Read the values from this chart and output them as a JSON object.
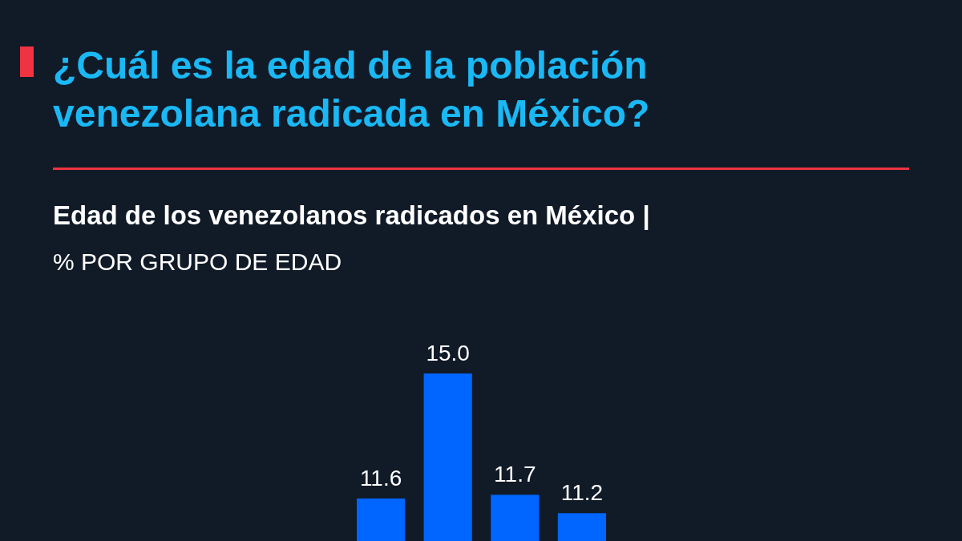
{
  "chart_data": {
    "type": "bar",
    "title": "¿Cuál es la edad de la población\nvenezolana radicada en México?",
    "subtitle": "Edad de los venezolanos radicados en México |",
    "ylabel": "% POR GRUPO DE EDAD",
    "categories": [
      null,
      null,
      null,
      null
    ],
    "values": [
      11.6,
      15.0,
      11.7,
      11.2
    ],
    "color": "#0066ff",
    "value_labels": [
      "11.6",
      "15.0",
      "11.7",
      "11.2"
    ]
  }
}
